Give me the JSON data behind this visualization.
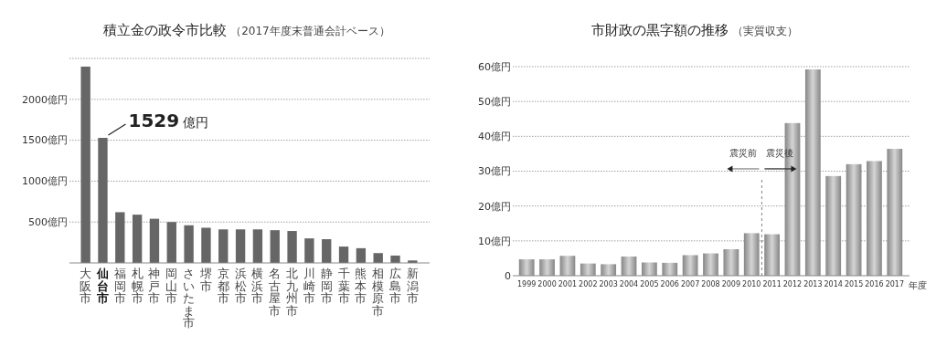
{
  "chart_data": [
    {
      "type": "bar",
      "title": "積立金の政令市比較",
      "subtitle": "（2017年度末普通会計ベース）",
      "categories": [
        "大阪市",
        "仙台市",
        "福岡市",
        "札幌市",
        "神戸市",
        "岡山市",
        "さいたま市",
        "堺市",
        "京都市",
        "浜松市",
        "横浜市",
        "名古屋市",
        "北九州市",
        "川崎市",
        "静岡市",
        "千葉市",
        "熊本市",
        "相模原市",
        "広島市",
        "新潟市"
      ],
      "values": [
        2400,
        1529,
        620,
        590,
        540,
        500,
        460,
        430,
        410,
        410,
        410,
        400,
        390,
        300,
        290,
        200,
        180,
        120,
        90,
        30
      ],
      "color": "#666666",
      "ylim": [
        0,
        2500
      ],
      "yticks": [
        {
          "value": 500,
          "label": "500億円"
        },
        {
          "value": 1000,
          "label": "1000億円"
        },
        {
          "value": 1500,
          "label": "1500億円"
        },
        {
          "value": 2000,
          "label": "2000億円"
        },
        {
          "value": 2500,
          "label": null
        }
      ],
      "grid": "y",
      "annotations": [
        {
          "text": "1529 億円",
          "x": "仙台市",
          "y": 1529
        }
      ]
    },
    {
      "type": "bar",
      "title": "市財政の黒字額の推移",
      "subtitle": "（実質収支）",
      "xlabel": "年度",
      "x": [
        1999,
        2000,
        2001,
        2002,
        2003,
        2004,
        2005,
        2006,
        2007,
        2008,
        2009,
        2010,
        2011,
        2012,
        2013,
        2014,
        2015,
        2016,
        2017
      ],
      "values": [
        4.7,
        4.7,
        5.7,
        3.5,
        3.3,
        5.5,
        3.8,
        3.7,
        5.9,
        6.4,
        7.6,
        12.2,
        11.9,
        43.8,
        59.2,
        28.6,
        32.0,
        32.9,
        36.4
      ],
      "color": "#a6a6a6",
      "xlim": [
        1998.5,
        2017.5
      ],
      "xticks": [
        1999,
        2000,
        2001,
        2002,
        2003,
        2004,
        2005,
        2006,
        2007,
        2008,
        2009,
        2010,
        2011,
        2012,
        2013,
        2014,
        2015,
        2016,
        2017
      ],
      "ylim": [
        0,
        60
      ],
      "yticks": [
        0,
        {
          "value": 10,
          "label": "10億円"
        },
        {
          "value": 20,
          "label": "20億円"
        },
        {
          "value": 30,
          "label": "30億円"
        },
        {
          "value": 40,
          "label": "40億円"
        },
        {
          "value": 50,
          "label": "50億円"
        },
        {
          "value": 60,
          "label": "60億円"
        }
      ],
      "grid": "y",
      "ref_lines": [
        {
          "axis": "x",
          "value": 2010.5,
          "line_style": "dashed"
        }
      ],
      "annotations": [
        "震災前",
        "震災後"
      ]
    }
  ]
}
